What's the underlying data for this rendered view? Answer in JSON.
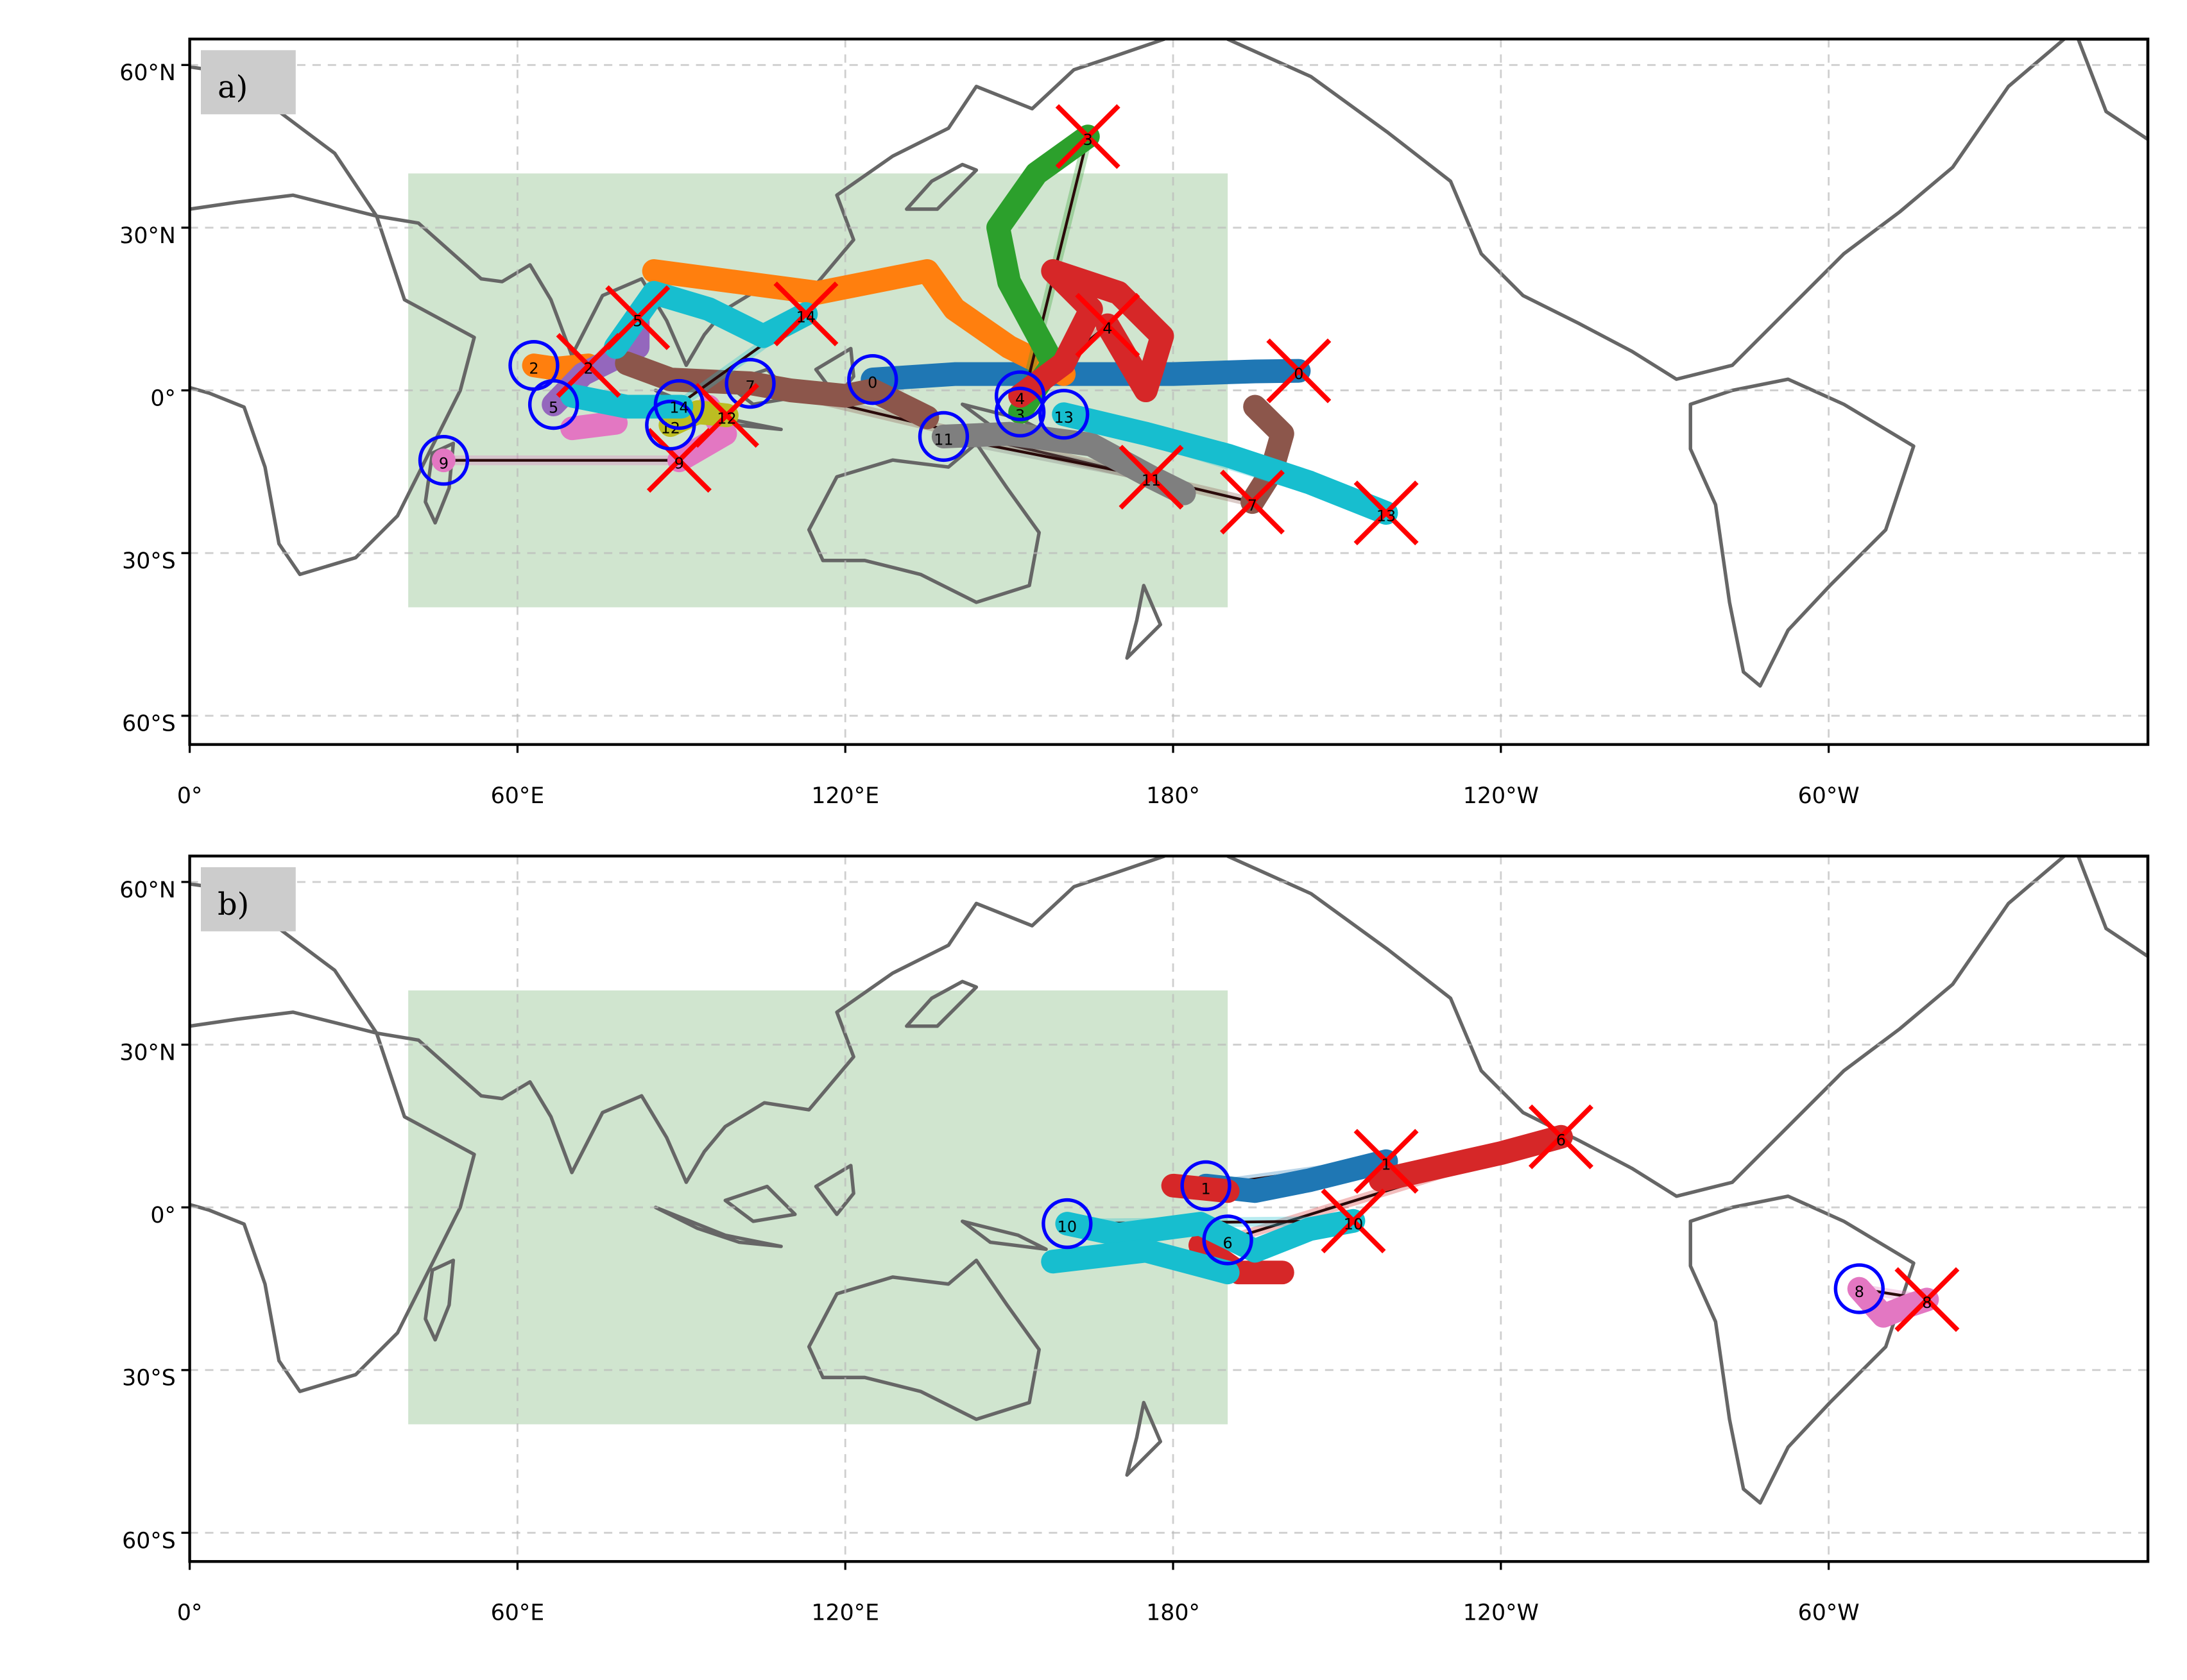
{
  "map": {
    "projection": "PlateCarree, central longitude 180",
    "x_ticks": [
      {
        "lon": 0,
        "label": "0°"
      },
      {
        "lon": 60,
        "label": "60°E"
      },
      {
        "lon": 120,
        "label": "120°E"
      },
      {
        "lon": 180,
        "label": "180°"
      },
      {
        "lon": 240,
        "label": "120°W"
      },
      {
        "lon": 300,
        "label": "60°W"
      }
    ],
    "y_ticks": [
      {
        "lat": 60,
        "label": "60°N"
      },
      {
        "lat": 30,
        "label": "30°N"
      },
      {
        "lat": 0,
        "label": "0°"
      },
      {
        "lat": -30,
        "label": "30°S"
      },
      {
        "lat": -60,
        "label": "60°S"
      }
    ],
    "region_box": {
      "lon_min": 40,
      "lon_max": 190,
      "lat_min": -40,
      "lat_max": 40,
      "color": "#cde4cc"
    },
    "start_marker_color": "#0000ff",
    "end_marker_color": "#ff0000",
    "grid": true
  },
  "panels": [
    {
      "label": "a)",
      "tracks": [
        {
          "id": "0",
          "color": "#1f77b4",
          "start": [
            125,
            2
          ],
          "end": [
            203,
            3.6
          ],
          "segments": [
            [
              [
                125,
                2
              ],
              [
                140,
                3
              ],
              [
                160,
                3
              ],
              [
                180,
                3
              ],
              [
                195,
                3.5
              ],
              [
                203,
                3.6
              ]
            ]
          ]
        },
        {
          "id": "2",
          "color": "#ff7f0e",
          "start": [
            63,
            4.6
          ],
          "end": [
            73,
            4.6
          ],
          "segments": [
            [
              [
                63,
                4.6
              ],
              [
                67,
                4
              ],
              [
                73,
                4.6
              ]
            ],
            [
              [
                85,
                22
              ],
              [
                100,
                20
              ],
              [
                115,
                18
              ],
              [
                125,
                20
              ],
              [
                135,
                22
              ],
              [
                140,
                15
              ],
              [
                150,
                8
              ],
              [
                160,
                3
              ]
            ]
          ]
        },
        {
          "id": "3",
          "color": "#2ca02c",
          "start": [
            152,
            -4
          ],
          "end": [
            164.4,
            46.8
          ],
          "segments": [
            [
              [
                152,
                -4
              ],
              [
                158,
                5
              ],
              [
                150,
                20
              ],
              [
                148,
                30
              ],
              [
                155,
                40
              ],
              [
                164.4,
                46.8
              ]
            ]
          ]
        },
        {
          "id": "4",
          "color": "#d62728",
          "start": [
            152,
            -1
          ],
          "end": [
            168,
            12
          ],
          "segments": [
            [
              [
                152,
                -1
              ],
              [
                160,
                5
              ],
              [
                165,
                15
              ],
              [
                158,
                22
              ],
              [
                170,
                18
              ],
              [
                178,
                10
              ],
              [
                175,
                0
              ],
              [
                168,
                12
              ]
            ]
          ]
        },
        {
          "id": "5",
          "color": "#9467bd",
          "start": [
            66.6,
            -2.6
          ],
          "end": [
            82,
            13.4
          ],
          "segments": [
            [
              [
                66.6,
                -2.6
              ],
              [
                72,
                3
              ],
              [
                82,
                8
              ],
              [
                82,
                13.4
              ]
            ]
          ]
        },
        {
          "id": "7",
          "color": "#8c564b",
          "start": [
            102.6,
            1.3
          ],
          "end": [
            194.5,
            -20.6
          ],
          "segments": [
            [
              [
                80,
                5
              ],
              [
                88,
                2
              ],
              [
                102.6,
                1.3
              ],
              [
                110,
                0
              ],
              [
                120,
                -1
              ],
              [
                125,
                0
              ],
              [
                135,
                -5
              ]
            ],
            [
              [
                195,
                -3
              ],
              [
                200,
                -8
              ],
              [
                198,
                -15
              ],
              [
                194.5,
                -20.6
              ]
            ]
          ]
        },
        {
          "id": "9",
          "color": "#e377c2",
          "start": [
            46.5,
            -12.9
          ],
          "end": [
            89.6,
            -12.9
          ],
          "segments": [
            [
              [
                46.5,
                -12.9
              ],
              [
                46.5,
                -12.9
              ]
            ],
            [
              [
                70,
                -7
              ],
              [
                78,
                -6
              ]
            ],
            [
              [
                95,
                -3
              ],
              [
                98,
                -8
              ],
              [
                89.6,
                -12.9
              ]
            ]
          ]
        },
        {
          "id": "11",
          "color": "#7f7f7f",
          "start": [
            138,
            -8.5
          ],
          "end": [
            176,
            -16
          ],
          "segments": [
            [
              [
                138,
                -8.5
              ],
              [
                150,
                -8
              ],
              [
                165,
                -10
              ],
              [
                176,
                -16
              ],
              [
                182,
                -19
              ]
            ]
          ]
        },
        {
          "id": "12",
          "color": "#bcbd22",
          "start": [
            88,
            -6.4
          ],
          "end": [
            98.3,
            -4.6
          ],
          "segments": [
            [
              [
                88,
                -6.4
              ],
              [
                93,
                -4
              ],
              [
                98.3,
                -4.6
              ]
            ]
          ]
        },
        {
          "id": "13",
          "color": "#17becf",
          "start": [
            160,
            -4.4
          ],
          "end": [
            219,
            -22.6
          ],
          "segments": [
            [
              [
                160,
                -4.4
              ],
              [
                175,
                -8
              ],
              [
                190,
                -12
              ],
              [
                205,
                -17
              ],
              [
                219,
                -22.6
              ]
            ]
          ]
        },
        {
          "id": "14",
          "color": "#17becf",
          "start": [
            89.6,
            -2.6
          ],
          "end": [
            112.8,
            14.1
          ],
          "segments": [
            [
              [
                70,
                -1
              ],
              [
                80,
                -3
              ],
              [
                90,
                -3
              ]
            ],
            [
              [
                78,
                8
              ],
              [
                85,
                18
              ],
              [
                95,
                15
              ],
              [
                105,
                10
              ],
              [
                112.8,
                14.1
              ]
            ]
          ]
        }
      ]
    },
    {
      "label": "b)",
      "tracks": [
        {
          "id": "1",
          "color": "#1f77b4",
          "start": [
            186,
            4
          ],
          "end": [
            219,
            8.5
          ],
          "segments": [
            [
              [
                186,
                4
              ],
              [
                195,
                3
              ],
              [
                205,
                5
              ],
              [
                219,
                8.5
              ]
            ]
          ]
        },
        {
          "id": "6",
          "color": "#d62728",
          "start": [
            190,
            -6
          ],
          "end": [
            251,
            13
          ],
          "segments": [
            [
              [
                180,
                4
              ],
              [
                190,
                3
              ]
            ],
            [
              [
                185,
                -7
              ],
              [
                192,
                -12
              ],
              [
                200,
                -12
              ]
            ],
            [
              [
                218,
                5
              ],
              [
                240,
                10
              ],
              [
                251,
                13
              ]
            ]
          ]
        },
        {
          "id": "8",
          "color": "#e377c2",
          "start": [
            305.6,
            -15
          ],
          "end": [
            318,
            -17
          ],
          "segments": [
            [
              [
                305.6,
                -15
              ],
              [
                310,
                -20
              ],
              [
                315,
                -18
              ],
              [
                318,
                -17
              ]
            ]
          ]
        },
        {
          "id": "10",
          "color": "#17becf",
          "start": [
            160.6,
            -3
          ],
          "end": [
            213,
            -2.5
          ],
          "segments": [
            [
              [
                160.6,
                -3
              ],
              [
                170,
                -5
              ],
              [
                185,
                -3
              ],
              [
                195,
                -8
              ],
              [
                205,
                -4
              ],
              [
                213,
                -2.5
              ]
            ],
            [
              [
                158,
                -10
              ],
              [
                175,
                -8
              ],
              [
                190,
                -12
              ]
            ]
          ]
        }
      ]
    }
  ]
}
